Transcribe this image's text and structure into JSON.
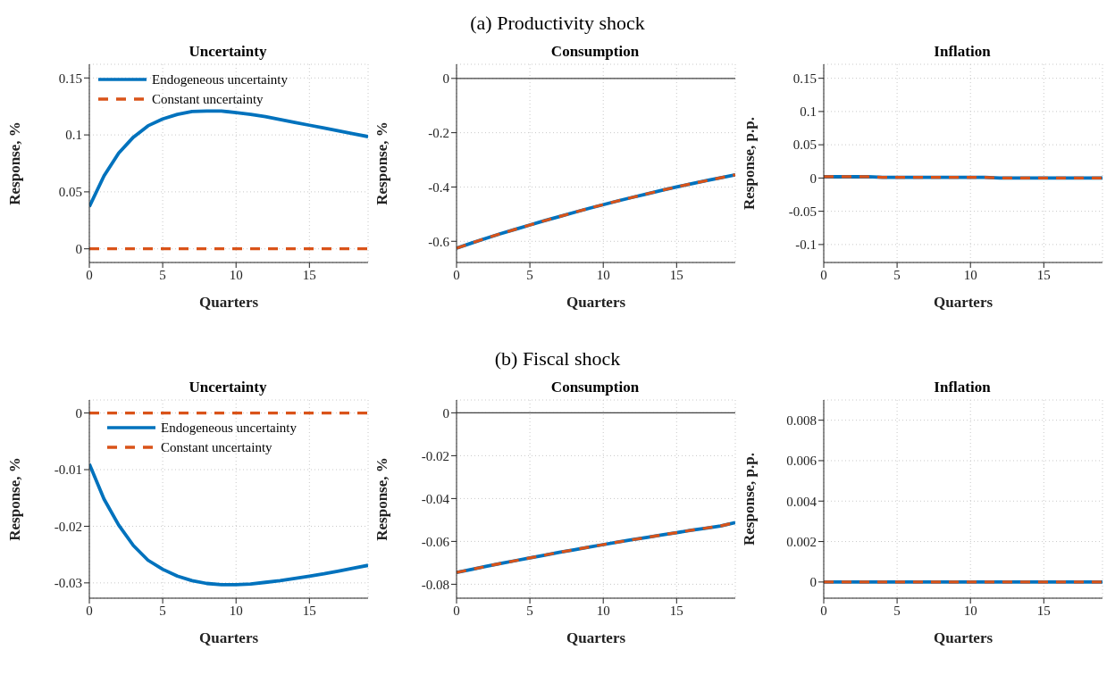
{
  "chart_data": [
    {
      "type": "line",
      "title": "Uncertainty",
      "annotations": [
        "(a) Productivity shock"
      ],
      "xlabel": "Quarters",
      "ylabel": "Response, %",
      "x": [
        0,
        1,
        2,
        3,
        4,
        5,
        6,
        7,
        8,
        9,
        10,
        11,
        12,
        13,
        14,
        15,
        16,
        17,
        18,
        19
      ],
      "xlim": [
        0,
        19
      ],
      "xticks": [
        0,
        5,
        10,
        15
      ],
      "ylim": [
        -0.012,
        0.162
      ],
      "yticks": [
        0,
        0.05,
        0.1,
        0.15
      ],
      "grid": true,
      "legend": "top left",
      "series": [
        {
          "name": "Endogeneous uncertainty",
          "color": "#0072bd",
          "line_style": "solid",
          "values": [
            0.037,
            0.064,
            0.084,
            0.098,
            0.108,
            0.114,
            0.118,
            0.1205,
            0.121,
            0.121,
            0.1195,
            0.118,
            0.116,
            0.1135,
            0.111,
            0.1085,
            0.106,
            0.1035,
            0.101,
            0.0985
          ]
        },
        {
          "name": "Constant uncertainty",
          "color": "#d95319",
          "line_style": "dashed",
          "values": [
            0,
            0,
            0,
            0,
            0,
            0,
            0,
            0,
            0,
            0,
            0,
            0,
            0,
            0,
            0,
            0,
            0,
            0,
            0,
            0
          ]
        }
      ]
    },
    {
      "type": "line",
      "title": "Consumption",
      "xlabel": "Quarters",
      "ylabel": "Response, %",
      "x": [
        0,
        1,
        2,
        3,
        4,
        5,
        6,
        7,
        8,
        9,
        10,
        11,
        12,
        13,
        14,
        15,
        16,
        17,
        18,
        19
      ],
      "xlim": [
        0,
        19
      ],
      "xticks": [
        0,
        5,
        10,
        15
      ],
      "ylim": [
        -0.678,
        0.052
      ],
      "yticks": [
        -0.6,
        -0.4,
        -0.2,
        0
      ],
      "grid": true,
      "ref_lines": [
        {
          "axis": "y",
          "value": 0,
          "color": "#404040"
        }
      ],
      "series": [
        {
          "color": "#0072bd",
          "line_style": "solid",
          "values": [
            -0.625,
            -0.607,
            -0.589,
            -0.572,
            -0.556,
            -0.54,
            -0.524,
            -0.509,
            -0.494,
            -0.479,
            -0.465,
            -0.451,
            -0.438,
            -0.425,
            -0.412,
            -0.4,
            -0.388,
            -0.377,
            -0.366,
            -0.355
          ]
        },
        {
          "color": "#d95319",
          "line_style": "dashed",
          "values": [
            -0.625,
            -0.607,
            -0.589,
            -0.572,
            -0.556,
            -0.54,
            -0.524,
            -0.509,
            -0.494,
            -0.479,
            -0.465,
            -0.451,
            -0.438,
            -0.425,
            -0.412,
            -0.4,
            -0.388,
            -0.377,
            -0.366,
            -0.355
          ]
        }
      ]
    },
    {
      "type": "line",
      "title": "Inflation",
      "xlabel": "Quarters",
      "ylabel": "Response, p.p.",
      "x": [
        0,
        1,
        2,
        3,
        4,
        5,
        6,
        7,
        8,
        9,
        10,
        11,
        12,
        13,
        14,
        15,
        16,
        17,
        18,
        19
      ],
      "xlim": [
        0,
        19
      ],
      "xticks": [
        0,
        5,
        10,
        15
      ],
      "ylim": [
        -0.127,
        0.171
      ],
      "yticks": [
        -0.1,
        -0.05,
        0,
        0.05,
        0.1,
        0.15
      ],
      "grid": true,
      "ref_lines": [
        {
          "axis": "y",
          "value": 0,
          "color": "#404040"
        }
      ],
      "series": [
        {
          "color": "#0072bd",
          "line_style": "solid",
          "values": [
            0.002,
            0.002,
            0.002,
            0.002,
            0.001,
            0.001,
            0.001,
            0.001,
            0.001,
            0.001,
            0.001,
            0.001,
            0,
            0,
            0,
            0,
            0,
            0,
            0,
            0
          ]
        },
        {
          "color": "#d95319",
          "line_style": "dashed",
          "values": [
            0.002,
            0.002,
            0.002,
            0.002,
            0.001,
            0.001,
            0.001,
            0.001,
            0.001,
            0.001,
            0.001,
            0.001,
            0,
            0,
            0,
            0,
            0,
            0,
            0,
            0
          ]
        }
      ]
    },
    {
      "type": "line",
      "title": "Uncertainty",
      "annotations": [
        "(b) Fiscal shock"
      ],
      "xlabel": "Quarters",
      "ylabel": "Response, %",
      "x": [
        0,
        1,
        2,
        3,
        4,
        5,
        6,
        7,
        8,
        9,
        10,
        11,
        12,
        13,
        14,
        15,
        16,
        17,
        18,
        19
      ],
      "xlim": [
        0,
        19
      ],
      "xticks": [
        0,
        5,
        10,
        15
      ],
      "ylim": [
        -0.0327,
        0.0023
      ],
      "yticks": [
        -0.03,
        -0.02,
        -0.01,
        0
      ],
      "grid": true,
      "legend": "top",
      "series": [
        {
          "name": "Endogeneous uncertainty",
          "color": "#0072bd",
          "line_style": "solid",
          "values": [
            -0.009,
            -0.0152,
            -0.0198,
            -0.0234,
            -0.026,
            -0.0276,
            -0.0288,
            -0.0296,
            -0.0301,
            -0.0303,
            -0.0303,
            -0.0302,
            -0.0299,
            -0.0296,
            -0.0292,
            -0.0288,
            -0.0284,
            -0.0279,
            -0.0274,
            -0.0269
          ]
        },
        {
          "name": "Constant uncertainty",
          "color": "#d95319",
          "line_style": "dashed",
          "values": [
            0,
            0,
            0,
            0,
            0,
            0,
            0,
            0,
            0,
            0,
            0,
            0,
            0,
            0,
            0,
            0,
            0,
            0,
            0,
            0
          ]
        }
      ]
    },
    {
      "type": "line",
      "title": "Consumption",
      "xlabel": "Quarters",
      "ylabel": "Response, %",
      "x": [
        0,
        1,
        2,
        3,
        4,
        5,
        6,
        7,
        8,
        9,
        10,
        11,
        12,
        13,
        14,
        15,
        16,
        17,
        18,
        19
      ],
      "xlim": [
        0,
        19
      ],
      "xticks": [
        0,
        5,
        10,
        15
      ],
      "ylim": [
        -0.0865,
        0.006
      ],
      "yticks": [
        -0.08,
        -0.06,
        -0.04,
        -0.02,
        0
      ],
      "grid": true,
      "ref_lines": [
        {
          "axis": "y",
          "value": 0,
          "color": "#404040"
        }
      ],
      "series": [
        {
          "color": "#0072bd",
          "line_style": "solid",
          "values": [
            -0.0745,
            -0.0731,
            -0.0717,
            -0.0703,
            -0.069,
            -0.0677,
            -0.0664,
            -0.0651,
            -0.0639,
            -0.0627,
            -0.0615,
            -0.0603,
            -0.0592,
            -0.0581,
            -0.057,
            -0.0559,
            -0.0548,
            -0.0538,
            -0.0528,
            -0.0512
          ]
        },
        {
          "color": "#d95319",
          "line_style": "dashed",
          "values": [
            -0.0745,
            -0.0731,
            -0.0717,
            -0.0703,
            -0.069,
            -0.0677,
            -0.0664,
            -0.0651,
            -0.0639,
            -0.0627,
            -0.0615,
            -0.0603,
            -0.0592,
            -0.0581,
            -0.057,
            -0.0559,
            -0.0548,
            -0.0538,
            -0.0528,
            -0.0512
          ]
        }
      ]
    },
    {
      "type": "line",
      "title": "Inflation",
      "xlabel": "Quarters",
      "ylabel": "Response, p.p.",
      "x": [
        0,
        1,
        2,
        3,
        4,
        5,
        6,
        7,
        8,
        9,
        10,
        11,
        12,
        13,
        14,
        15,
        16,
        17,
        18,
        19
      ],
      "xlim": [
        0,
        19
      ],
      "xticks": [
        0,
        5,
        10,
        15
      ],
      "ylim": [
        -0.0008,
        0.009
      ],
      "yticks": [
        0,
        0.002,
        0.004,
        0.006,
        0.008
      ],
      "grid": true,
      "series": [
        {
          "color": "#0072bd",
          "line_style": "solid",
          "values": [
            0,
            0,
            0,
            0,
            0,
            0,
            0,
            0,
            0,
            0,
            0,
            0,
            0,
            0,
            0,
            0,
            0,
            0,
            0,
            0
          ]
        },
        {
          "color": "#d95319",
          "line_style": "dashed",
          "values": [
            0,
            0,
            0,
            0,
            0,
            0,
            0,
            0,
            0,
            0,
            0,
            0,
            0,
            0,
            0,
            0,
            0,
            0,
            0,
            0
          ]
        }
      ]
    }
  ]
}
